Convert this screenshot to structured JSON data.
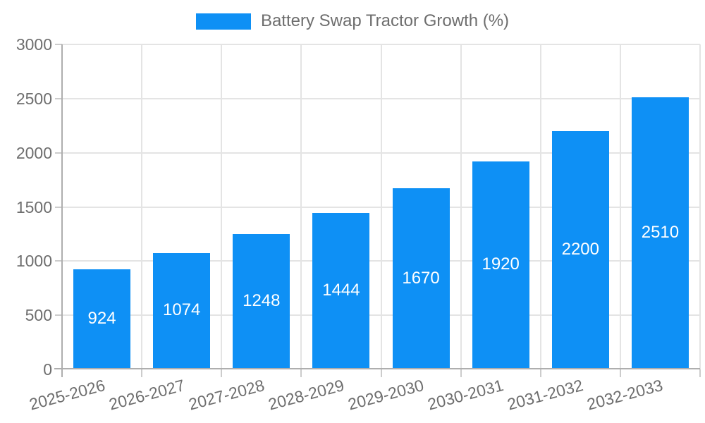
{
  "chart_data": {
    "type": "bar",
    "title": "Battery Swap Tractor Growth (%)",
    "legend_position": "top",
    "categories": [
      "2025-2026",
      "2026-2027",
      "2027-2028",
      "2028-2029",
      "2029-2030",
      "2030-2031",
      "2031-2032",
      "2032-2033"
    ],
    "values": [
      924,
      1074,
      1248,
      1444,
      1670,
      1920,
      2200,
      2510
    ],
    "series": [
      {
        "name": "Battery Swap Tractor Growth (%)",
        "values": [
          924,
          1074,
          1248,
          1444,
          1670,
          1920,
          2200,
          2510
        ]
      }
    ],
    "xlabel": "",
    "ylabel": "",
    "ylim": [
      0,
      3000
    ],
    "y_ticks": [
      0,
      500,
      1000,
      1500,
      2000,
      2500,
      3000
    ],
    "grid": true,
    "x_tick_rotation_deg": -15,
    "colors": {
      "bar": "#0e90f5",
      "bar_label": "#ffffff",
      "grid": "#e4e4e4",
      "tick": "#cccccc",
      "axis": "#aeaeae",
      "text": "#6e6e6e"
    }
  }
}
